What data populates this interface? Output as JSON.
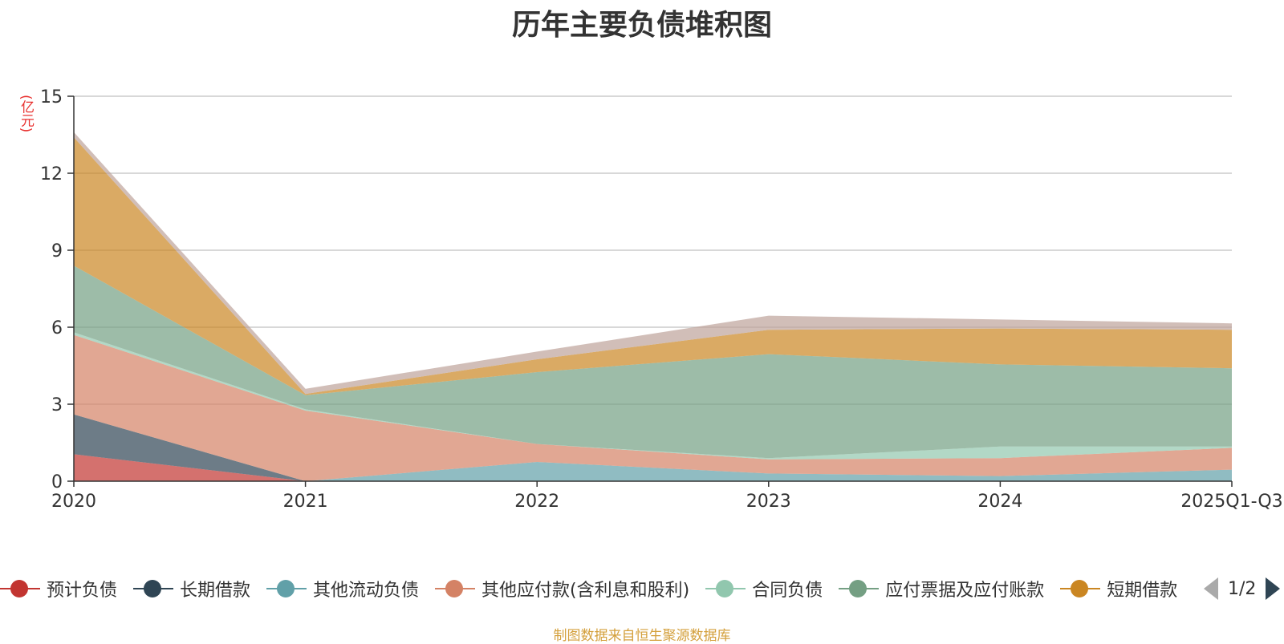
{
  "chart_data": {
    "type": "area",
    "title": "历年主要负债堆积图",
    "ylabel": "(亿元)",
    "ylim": [
      0,
      15
    ],
    "yticks": [
      0,
      3,
      6,
      9,
      12,
      15
    ],
    "x": [
      "2020",
      "2021",
      "2022",
      "2023",
      "2024",
      "2025Q1-Q3"
    ],
    "grid": true,
    "stacked": true,
    "series": [
      {
        "name": "预计负债",
        "color": "#c23531",
        "values": [
          1.05,
          0,
          0,
          0,
          0,
          0
        ]
      },
      {
        "name": "长期借款",
        "color": "#2f4554",
        "values": [
          1.55,
          0,
          0,
          0,
          0,
          0
        ]
      },
      {
        "name": "其他流动负债",
        "color": "#61a0a8",
        "values": [
          0,
          0,
          0.75,
          0.3,
          0.2,
          0.45
        ]
      },
      {
        "name": "其他应付款(含利息和股利)",
        "color": "#d48265",
        "values": [
          3.1,
          2.75,
          0.7,
          0.55,
          0.7,
          0.85
        ]
      },
      {
        "name": "合同负债",
        "color": "#91c7ae",
        "values": [
          0.1,
          0.05,
          0,
          0.05,
          0.45,
          0.05
        ]
      },
      {
        "name": "应付票据及应付账款",
        "color": "#749f83",
        "values": [
          2.6,
          0.55,
          2.8,
          4.05,
          3.2,
          3.05
        ]
      },
      {
        "name": "短期借款",
        "color": "#ca8622",
        "values": [
          5.0,
          0.05,
          0.5,
          0.95,
          1.4,
          1.5
        ]
      },
      {
        "name": "",
        "color": "#bda29a",
        "values": [
          0.2,
          0.2,
          0.3,
          0.55,
          0.35,
          0.25
        ]
      }
    ]
  },
  "legend_page": "1/2",
  "source": "制图数据来自恒生聚源数据库"
}
